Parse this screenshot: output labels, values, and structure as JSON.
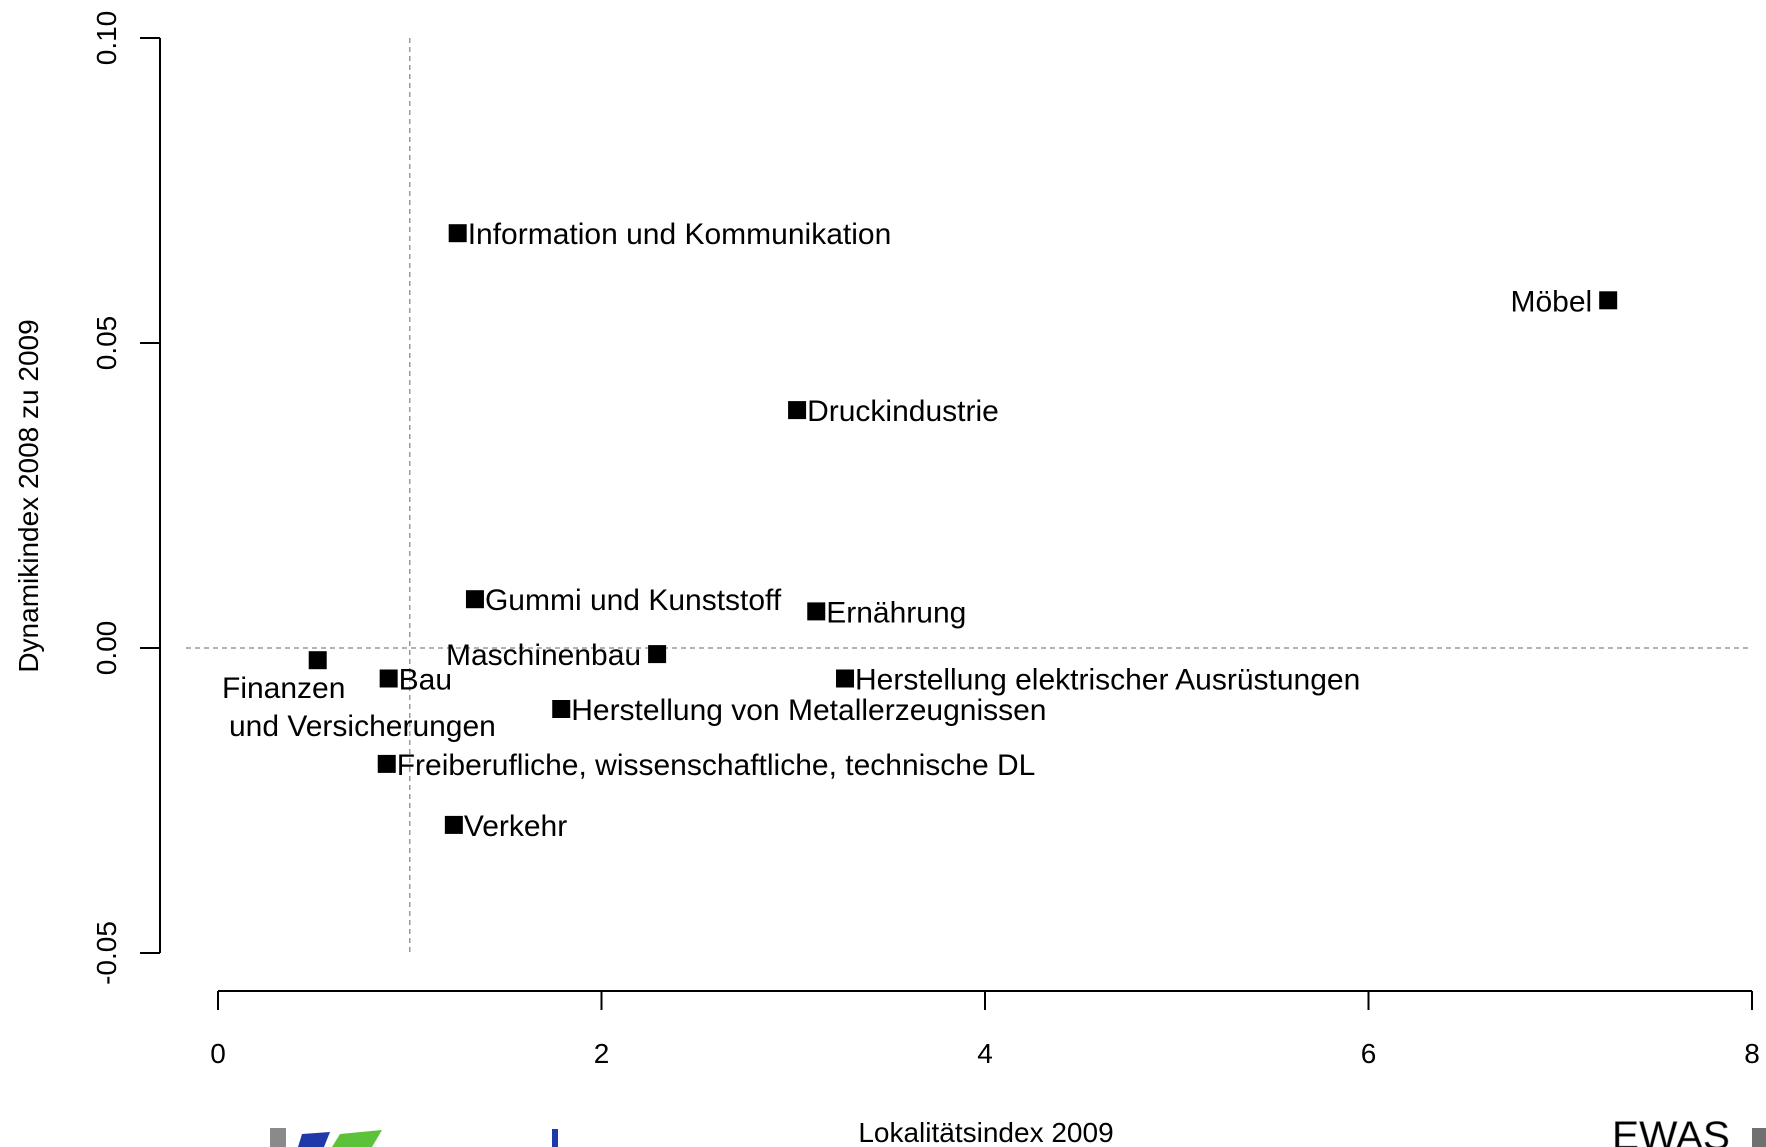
{
  "chart_data": {
    "type": "scatter",
    "title": "",
    "xlabel": "Lokalitätsindex 2009",
    "ylabel": "Dynamikindex 2008 zu 2009",
    "xlim": [
      0,
      8
    ],
    "ylim": [
      -0.05,
      0.1
    ],
    "x_ticks": [
      0,
      2,
      4,
      6,
      8
    ],
    "x_tick_labels": [
      "0",
      "2",
      "4",
      "6",
      "8"
    ],
    "y_ticks": [
      -0.05,
      0.0,
      0.05,
      0.1
    ],
    "y_tick_labels": [
      "-0.05",
      "0.00",
      "0.05",
      "0.10"
    ],
    "reference_lines": {
      "x": 1,
      "y": 0,
      "style": "dashed gray"
    },
    "marker": {
      "shape": "square",
      "color": "#000000"
    },
    "points": [
      {
        "label": "Information und Kommunikation",
        "x": 1.25,
        "y": 0.068,
        "label_pos": "right"
      },
      {
        "label": "Möbel",
        "x": 7.25,
        "y": 0.057,
        "label_pos": "left"
      },
      {
        "label": "Druckindustrie",
        "x": 3.02,
        "y": 0.039,
        "label_pos": "right"
      },
      {
        "label": "Gummi und Kunststoff",
        "x": 1.34,
        "y": 0.008,
        "label_pos": "right"
      },
      {
        "label": "Ernährung",
        "x": 3.12,
        "y": 0.006,
        "label_pos": "right"
      },
      {
        "label": "Maschinenbau",
        "x": 2.29,
        "y": -0.001,
        "label_pos": "left"
      },
      {
        "label": "Finanzen und Versicherungen",
        "label_lines": [
          "Finanzen",
          "und Versicherungen"
        ],
        "x": 0.52,
        "y": -0.002,
        "label_pos": "below"
      },
      {
        "label": "Bau",
        "x": 0.89,
        "y": -0.005,
        "label_pos": "right"
      },
      {
        "label": "Herstellung elektrischer Ausrüstungen",
        "x": 3.27,
        "y": -0.005,
        "label_pos": "right"
      },
      {
        "label": "Herstellung von Metallerzeugnissen",
        "x": 1.79,
        "y": -0.01,
        "label_pos": "right"
      },
      {
        "label": "Freiberufliche, wissenschaftliche, technische DL",
        "x": 0.88,
        "y": -0.019,
        "label_pos": "right"
      },
      {
        "label": "Verkehr",
        "x": 1.23,
        "y": -0.029,
        "label_pos": "right"
      }
    ]
  },
  "footer": {
    "logo_right_text": "EWAS"
  },
  "colors": {
    "axis": "#000000",
    "reference_line": "#9a9a9a",
    "marker": "#000000",
    "logo_blue": "#1f3aa8",
    "logo_green": "#5cc23a",
    "logo_gray": "#8a8a8a"
  }
}
